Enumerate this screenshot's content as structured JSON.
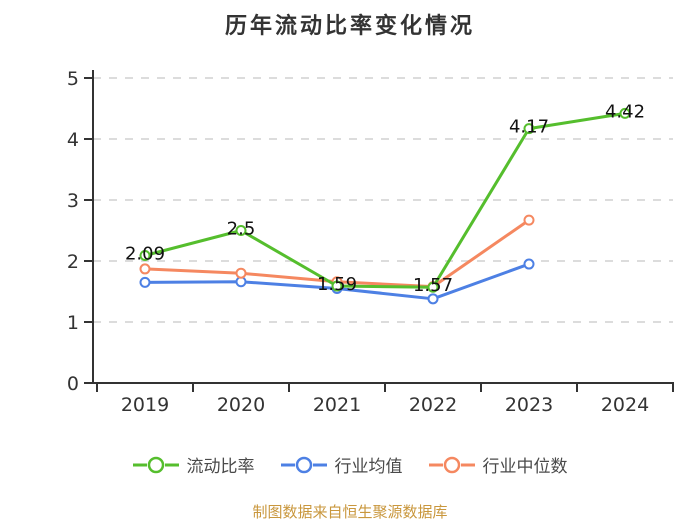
{
  "title": "历年流动比率变化情况",
  "footer": "制图数据来自恒生聚源数据库",
  "colors": {
    "series_green": "#55BE2D",
    "series_blue": "#4D80E4",
    "series_orange": "#F58860",
    "axis": "#333333",
    "grid": "#DCDCDC",
    "data_label": "#111111",
    "legend_text": "#4A4A4A",
    "footer_text": "#C9973D"
  },
  "chart_data": {
    "type": "line",
    "title": "历年流动比率变化情况",
    "categories": [
      "2019",
      "2020",
      "2021",
      "2022",
      "2023",
      "2024"
    ],
    "series": [
      {
        "name": "流动比率",
        "key": "current-ratio",
        "color": "#55BE2D",
        "values": [
          2.09,
          2.5,
          1.59,
          1.57,
          4.17,
          4.42
        ],
        "labels": [
          "2.09",
          "2.5",
          "1.59",
          "1.57",
          "4.17",
          "4.42"
        ]
      },
      {
        "name": "行业均值",
        "key": "industry-average",
        "color": "#4D80E4",
        "values": [
          1.65,
          1.66,
          1.55,
          1.38,
          1.95,
          null
        ]
      },
      {
        "name": "行业中位数",
        "key": "industry-median",
        "color": "#F58860",
        "values": [
          1.87,
          1.8,
          1.66,
          1.58,
          2.67,
          null
        ]
      }
    ],
    "ylim": [
      0,
      5
    ],
    "y_ticks": [
      0,
      1,
      2,
      3,
      4,
      5
    ],
    "xlabel": "",
    "ylabel": "",
    "grid": "horizontal dashed",
    "legend_position": "bottom",
    "marker": "hollow-circle"
  },
  "legend": {
    "items": [
      {
        "label": "流动比率",
        "color": "#55BE2D"
      },
      {
        "label": "行业均值",
        "color": "#4D80E4"
      },
      {
        "label": "行业中位数",
        "color": "#F58860"
      }
    ]
  }
}
